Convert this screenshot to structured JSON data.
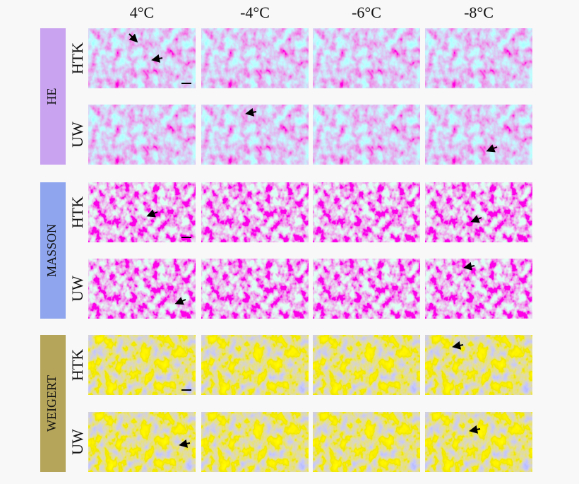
{
  "columns": [
    "4°C",
    "-4°C",
    "-6°C",
    "-8°C"
  ],
  "groups": [
    {
      "label": "HE",
      "rows": [
        "HTK",
        "UW"
      ]
    },
    {
      "label": "MASSON",
      "rows": [
        "HTK",
        "UW"
      ]
    },
    {
      "label": "WEIGERT",
      "rows": [
        "HTK",
        "UW"
      ]
    }
  ]
}
